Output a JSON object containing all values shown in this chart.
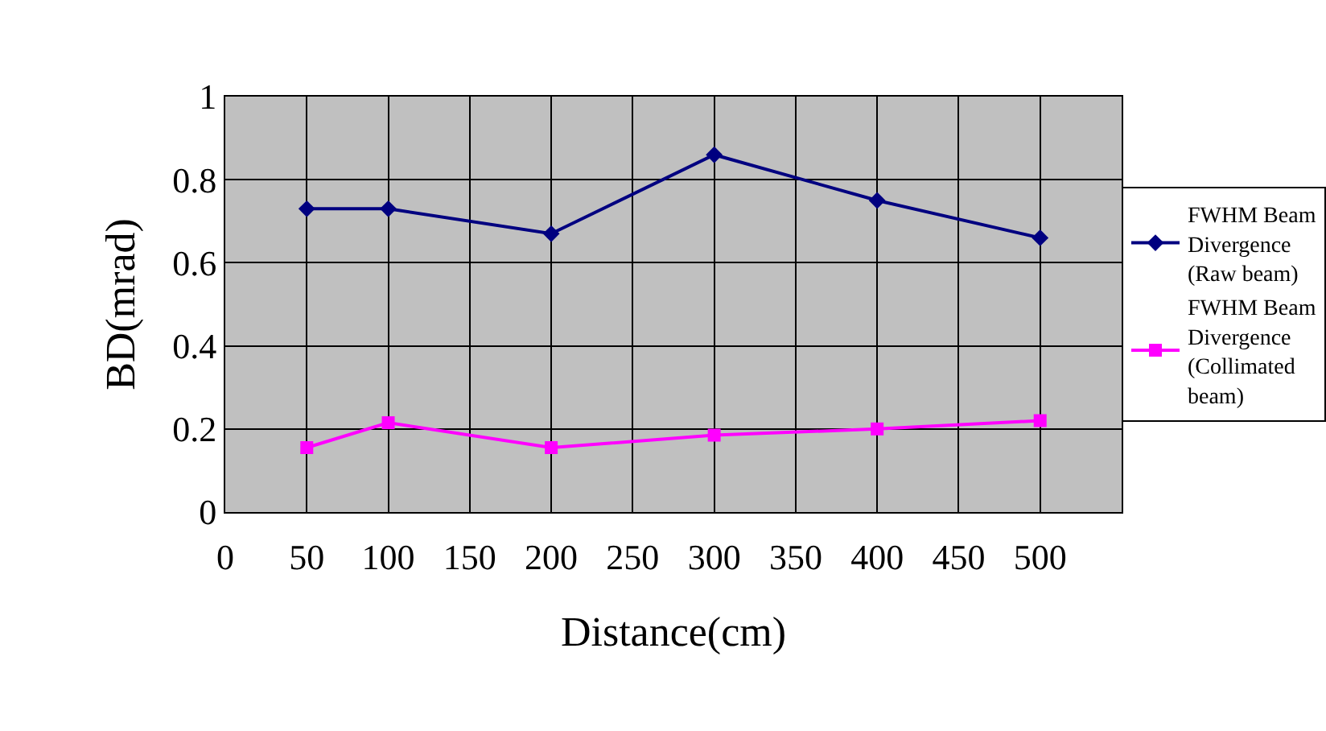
{
  "chart_data": {
    "type": "line",
    "xlabel": "Distance(cm)",
    "ylabel": "BD(mrad)",
    "x": [
      50,
      100,
      200,
      300,
      400,
      500
    ],
    "series": [
      {
        "name": "FWHM Beam Divergence (Raw beam)",
        "color": "#000080",
        "marker": "diamond",
        "values": [
          0.73,
          0.73,
          0.67,
          0.86,
          0.75,
          0.66
        ]
      },
      {
        "name": "FWHM Beam Divergence (Collimated beam)",
        "color": "#ff00ff",
        "marker": "square",
        "values": [
          0.155,
          0.215,
          0.155,
          0.185,
          0.2,
          0.22
        ]
      }
    ],
    "xlim": [
      0,
      550
    ],
    "xticks": [
      0,
      50,
      100,
      150,
      200,
      250,
      300,
      350,
      400,
      450,
      500
    ],
    "ylim": [
      0,
      1
    ],
    "yticks": [
      0,
      0.2,
      0.4,
      0.6,
      0.8,
      1
    ],
    "grid": true,
    "legend": "right",
    "line_style": "solid"
  }
}
